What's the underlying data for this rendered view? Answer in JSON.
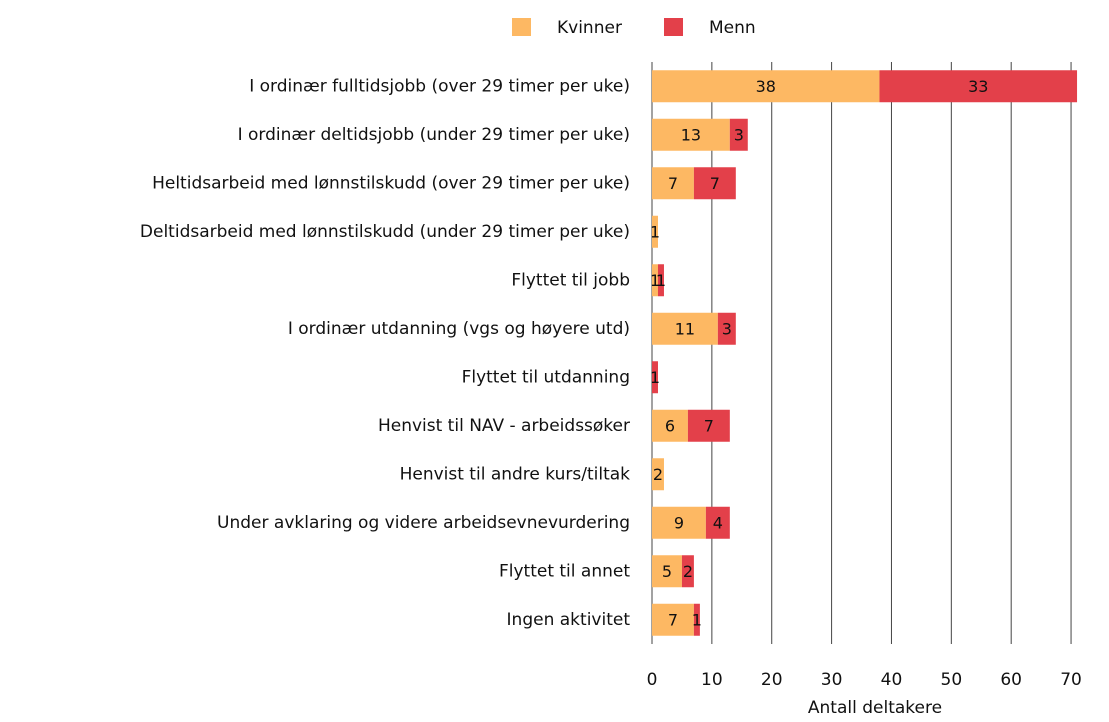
{
  "chart_data": {
    "type": "stacked_bar_horizontal",
    "categories": [
      "I ordinær fulltidsjobb (over 29 timer per uke)",
      "I ordinær deltidsjobb (under 29 timer per uke)",
      "Heltidsarbeid med lønnstilskudd (over 29 timer per uke)",
      "Deltidsarbeid med lønnstilskudd (under 29 timer per uke)",
      "Flyttet til jobb",
      "I ordinær utdanning (vgs og høyere utd)",
      "Flyttet til utdanning",
      "Henvist til NAV - arbeidssøker",
      "Henvist til andre kurs/tiltak",
      "Under avklaring og videre arbeidsevnevurdering",
      "Flyttet til annet",
      "Ingen aktivitet"
    ],
    "series": [
      {
        "name": "Kvinner",
        "color": "#fdb863",
        "values": [
          38,
          13,
          7,
          1,
          1,
          11,
          null,
          6,
          2,
          9,
          5,
          7
        ]
      },
      {
        "name": "Menn",
        "color": "#e3404a",
        "values": [
          33,
          3,
          7,
          null,
          1,
          3,
          1,
          7,
          null,
          4,
          2,
          1
        ]
      }
    ],
    "xlabel": "Antall deltakere",
    "xlim": [
      0,
      74
    ],
    "xticks": [
      0,
      10,
      20,
      30,
      40,
      50,
      60,
      70
    ],
    "grid": true,
    "legend": "top"
  }
}
